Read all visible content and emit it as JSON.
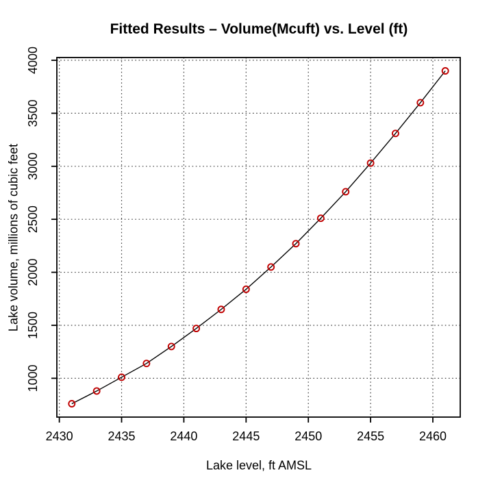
{
  "chart_data": {
    "type": "line",
    "title": "Fitted Results – Volume(Mcuft) vs. Level (ft)",
    "xlabel": "Lake level, ft AMSL",
    "ylabel": "Lake volume, millions of cubic feet",
    "x": [
      2431,
      2433,
      2435,
      2437,
      2439,
      2441,
      2443,
      2445,
      2447,
      2449,
      2451,
      2453,
      2455,
      2457,
      2459,
      2461
    ],
    "y": [
      760,
      880,
      1010,
      1140,
      1300,
      1470,
      1650,
      1840,
      2050,
      2270,
      2510,
      2760,
      3030,
      3310,
      3600,
      3900
    ],
    "x_ticks": [
      2430,
      2435,
      2440,
      2445,
      2450,
      2455,
      2460
    ],
    "y_ticks": [
      1000,
      1500,
      2000,
      2500,
      3000,
      3500,
      4000
    ],
    "xlim": [
      2429.8,
      2462.2
    ],
    "ylim": [
      634,
      4026
    ],
    "grid": true,
    "legend": "none",
    "marker": "open-circle",
    "colors": {
      "marker": "#C00000",
      "line": "#000000",
      "grid": "#3d3d3d",
      "axis": "#000000",
      "text": "#000000",
      "background": "#ffffff"
    }
  }
}
